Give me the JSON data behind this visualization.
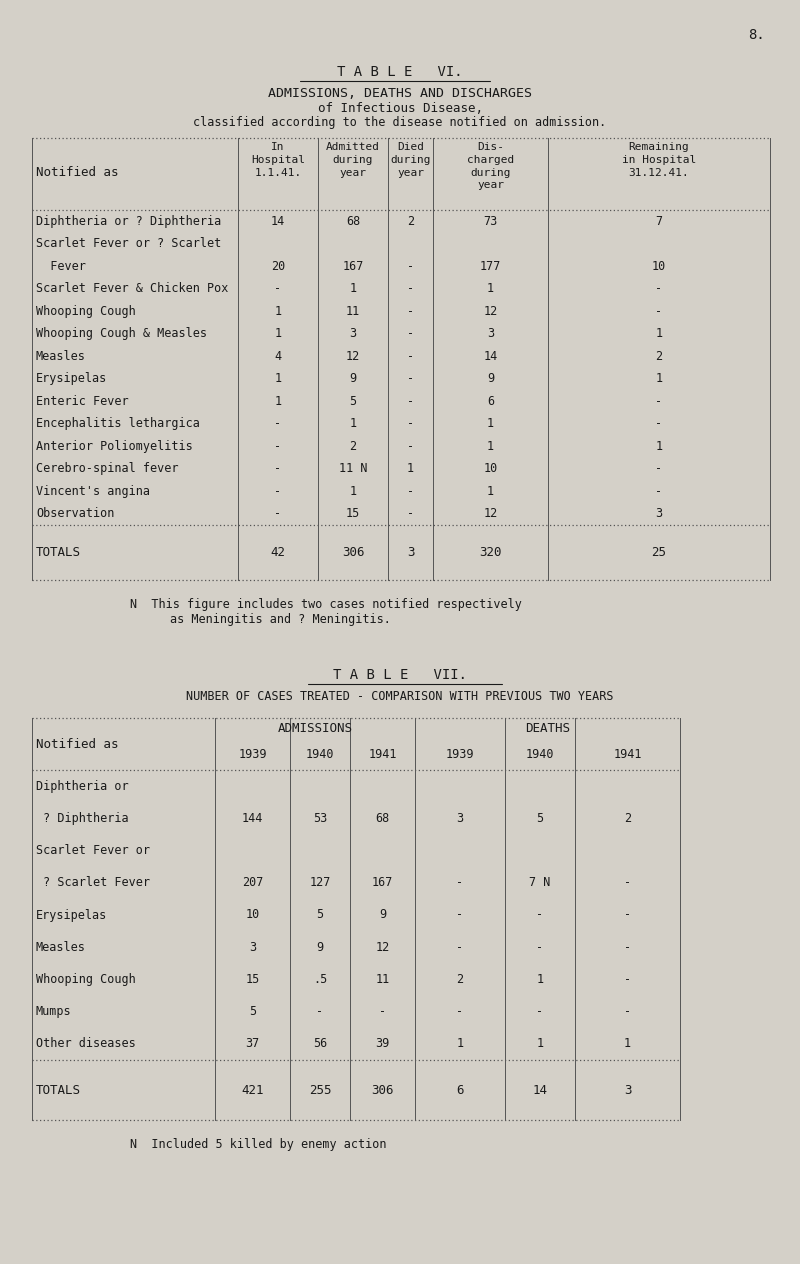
{
  "page_number": "8.",
  "bg_color": "#d4d0c8",
  "text_color": "#1a1a1a",
  "table6": {
    "title": "T A B L E   VI.",
    "subtitle1": "ADMISSIONS, DEATHS AND DISCHARGES",
    "subtitle2": "of Infectious Disease,",
    "subtitle3": "classified according to the disease notified on admission.",
    "col_header_label": "Notified as",
    "col_headers": [
      "In\nHospital\n1.1.41.",
      "Admitted\nduring\nyear",
      "Died\nduring\nyear",
      "Dis-\ncharged\nduring\nyear",
      "Remaining\nin Hospital\n31.12.41."
    ],
    "rows": [
      [
        "Diphtheria or ? Diphtheria",
        "14",
        "68",
        "2",
        "73",
        "7"
      ],
      [
        "Scarlet Fever or ? Scarlet",
        "",
        "",
        "",
        "",
        ""
      ],
      [
        "  Fever",
        "20",
        "167",
        "-",
        "177",
        "10"
      ],
      [
        "Scarlet Fever & Chicken Pox",
        "-",
        "1",
        "-",
        "1",
        "-"
      ],
      [
        "Whooping Cough",
        "1",
        "11",
        "-",
        "12",
        "-"
      ],
      [
        "Whooping Cough & Measles",
        "1",
        "3",
        "-",
        "3",
        "1"
      ],
      [
        "Measles",
        "4",
        "12",
        "-",
        "14",
        "2"
      ],
      [
        "Erysipelas",
        "1",
        "9",
        "-",
        "9",
        "1"
      ],
      [
        "Enteric Fever",
        "1",
        "5",
        "-",
        "6",
        "-"
      ],
      [
        "Encephalitis lethargica",
        "-",
        "1",
        "-",
        "1",
        "-"
      ],
      [
        "Anterior Poliomyelitis",
        "-",
        "2",
        "-",
        "1",
        "1"
      ],
      [
        "Cerebro-spinal fever",
        "-",
        "11 N",
        "1",
        "10",
        "-"
      ],
      [
        "Vincent's angina",
        "-",
        "1",
        "-",
        "1",
        "-"
      ],
      [
        "Observation",
        "-",
        "15",
        "-",
        "12",
        "3"
      ]
    ],
    "totals": [
      "TOTALS",
      "42",
      "306",
      "3",
      "320",
      "25"
    ],
    "footnote_line1": "N  This figure includes two cases notified respectively",
    "footnote_line2": "as Meningitis and ? Meningitis."
  },
  "table7": {
    "title": "T A B L E   VII.",
    "subtitle": "NUMBER OF CASES TREATED - COMPARISON WITH PREVIOUS TWO YEARS",
    "col_header_label": "Notified as",
    "group1_label": "ADMISSIONS",
    "group2_label": "DEATHS",
    "year_headers": [
      "1939",
      "1940",
      "1941",
      "1939",
      "1940",
      "1941"
    ],
    "rows": [
      [
        "Diphtheria or",
        "",
        "",
        "",
        "",
        "",
        ""
      ],
      [
        " ? Diphtheria",
        "144",
        "53",
        "68",
        "3",
        "5",
        "2"
      ],
      [
        "Scarlet Fever or",
        "",
        "",
        "",
        "",
        "",
        ""
      ],
      [
        " ? Scarlet Fever",
        "207",
        "127",
        "167",
        "-",
        "7 N",
        "-"
      ],
      [
        "Erysipelas",
        "10",
        "5",
        "9",
        "-",
        "-",
        "-"
      ],
      [
        "Measles",
        "3",
        "9",
        "12",
        "-",
        "-",
        "-"
      ],
      [
        "Whooping Cough",
        "15",
        ".5",
        "11",
        "2",
        "1",
        "-"
      ],
      [
        "Mumps",
        "5",
        "-",
        "-",
        "-",
        "-",
        "-"
      ],
      [
        "Other diseases",
        "37",
        "56",
        "39",
        "1",
        "1",
        "1"
      ]
    ],
    "totals": [
      "TOTALS",
      "421",
      "255",
      "306",
      "6",
      "14",
      "3"
    ],
    "footnote": "N  Included 5 killed by enemy action"
  }
}
